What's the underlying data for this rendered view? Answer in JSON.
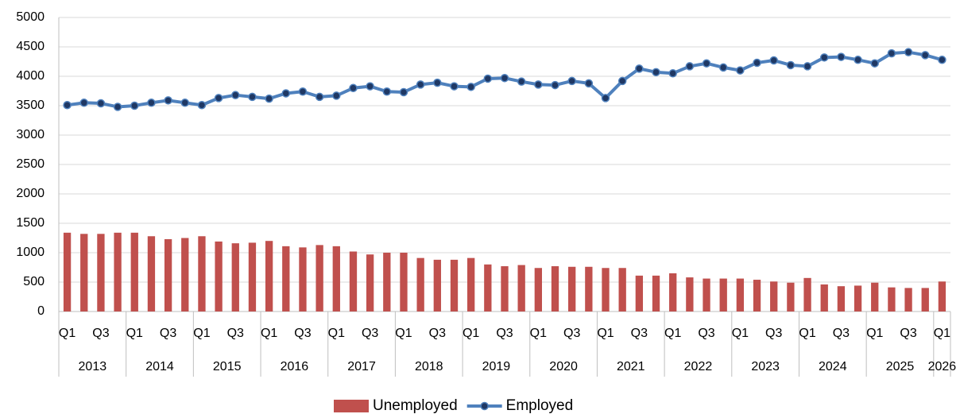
{
  "chart_data": {
    "type": "bar-line",
    "categories": [
      "Q1",
      null,
      "Q3",
      null,
      "Q1",
      null,
      "Q3",
      null,
      "Q1",
      null,
      "Q3",
      null,
      "Q1",
      null,
      "Q3",
      null,
      "Q1",
      null,
      "Q3",
      null,
      "Q1",
      null,
      "Q3",
      null,
      "Q1",
      null,
      "Q3",
      null,
      "Q1",
      null,
      "Q3",
      null,
      "Q1",
      null,
      "Q3",
      null,
      "Q1",
      null,
      "Q3",
      null,
      "Q1",
      null,
      "Q3",
      null,
      "Q1",
      null,
      "Q3",
      null,
      "Q1",
      null,
      "Q3",
      null,
      "Q1"
    ],
    "years": [
      "2013",
      "2014",
      "2015",
      "2016",
      "2017",
      "2018",
      "2019",
      "2020",
      "2021",
      "2022",
      "2023",
      "2024",
      "2025",
      "2026"
    ],
    "series": [
      {
        "name": "Unemployed",
        "type": "bar",
        "color": "#c0504d",
        "values": [
          1340,
          1320,
          1320,
          1340,
          1340,
          1280,
          1230,
          1250,
          1280,
          1190,
          1160,
          1170,
          1200,
          1110,
          1090,
          1130,
          1110,
          1020,
          970,
          1000,
          1000,
          910,
          880,
          880,
          910,
          800,
          770,
          790,
          740,
          770,
          760,
          760,
          740,
          740,
          610,
          610,
          650,
          580,
          560,
          560,
          560,
          540,
          510,
          490,
          570,
          460,
          430,
          440,
          490,
          410,
          400,
          400,
          510
        ]
      },
      {
        "name": "Employed",
        "type": "line",
        "color": "#4f81bd",
        "values": [
          3510,
          3550,
          3540,
          3480,
          3500,
          3550,
          3590,
          3550,
          3510,
          3630,
          3680,
          3650,
          3620,
          3710,
          3740,
          3650,
          3670,
          3800,
          3830,
          3740,
          3730,
          3860,
          3890,
          3830,
          3820,
          3960,
          3970,
          3910,
          3860,
          3850,
          3920,
          3880,
          3630,
          3920,
          4130,
          4070,
          4050,
          4170,
          4220,
          4150,
          4100,
          4230,
          4270,
          4190,
          4170,
          4320,
          4330,
          4280,
          4220,
          4390,
          4410,
          4360,
          4280
        ]
      }
    ],
    "ylim": [
      0,
      5000
    ],
    "yticks": [
      0,
      500,
      1000,
      1500,
      2000,
      2500,
      3000,
      3500,
      4000,
      4500,
      5000
    ],
    "grid": true,
    "legend": "bottom"
  }
}
